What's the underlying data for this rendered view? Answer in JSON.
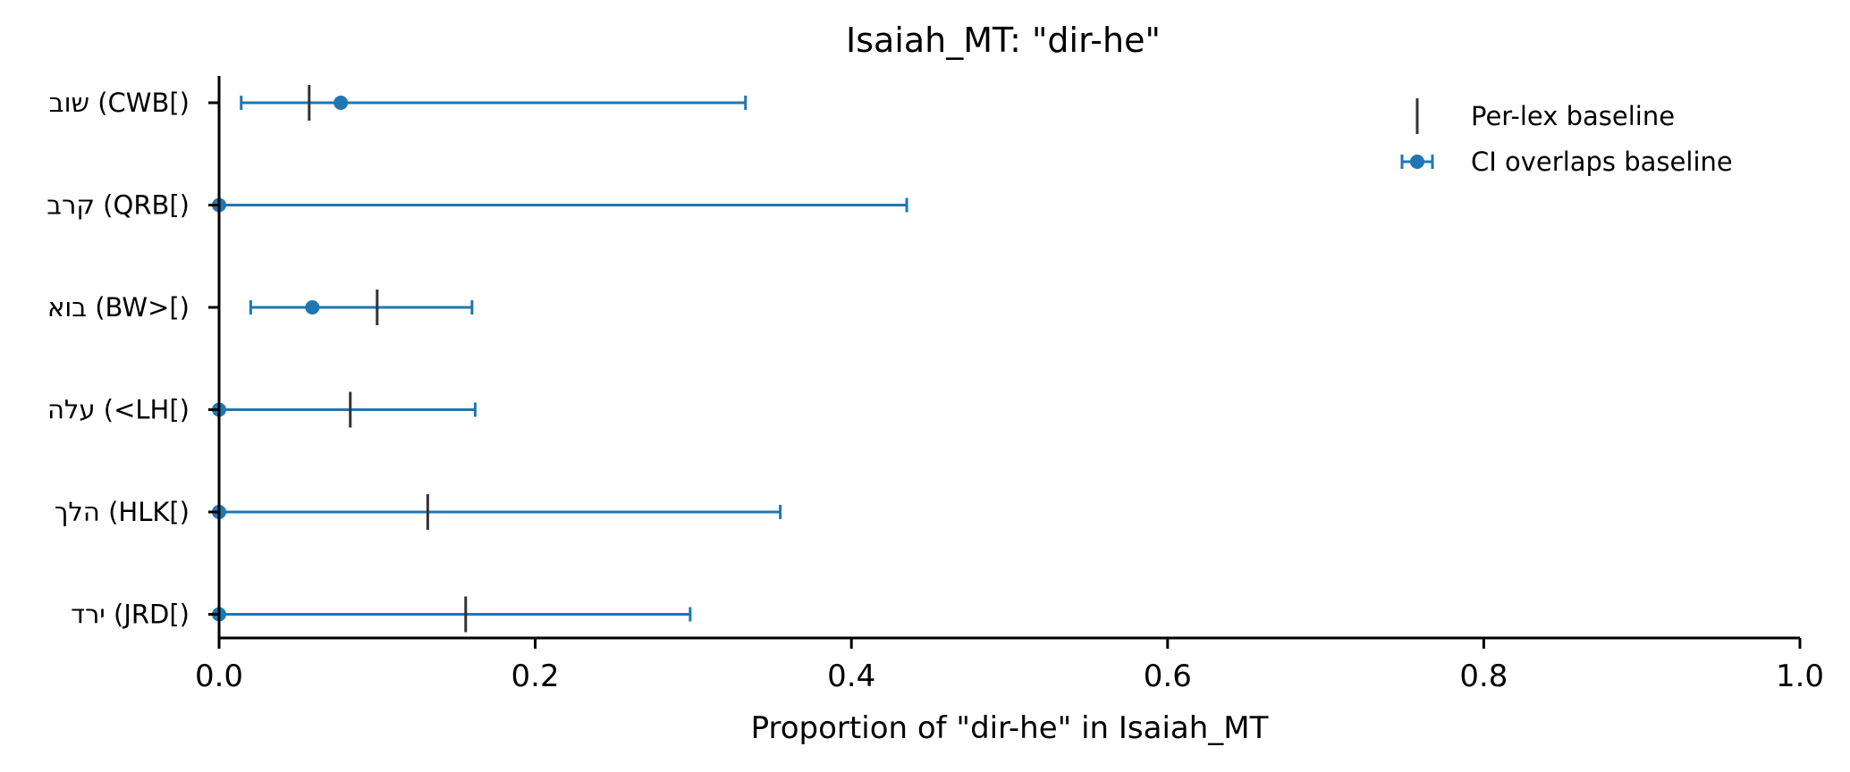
{
  "chart_data": {
    "type": "errorbar-dot",
    "title": "Isaiah_MT: \"dir-he\"",
    "xlabel": "Proportion of \"dir-he\" in Isaiah_MT",
    "ylabel": "",
    "xlim": [
      0.0,
      1.0
    ],
    "xticks": [
      "0.0",
      "0.2",
      "0.4",
      "0.6",
      "0.8",
      "1.0"
    ],
    "grid": false,
    "legend_position": "top-right",
    "legend": [
      {
        "label": "Per-lex baseline",
        "marker": "vertical-line",
        "color": "#333333"
      },
      {
        "label": "CI overlaps baseline",
        "marker": "dot-with-errorbar",
        "color": "#1f77b4"
      }
    ],
    "categories": [
      "שוב (CWB[)",
      "קרב (QRB[)",
      "בוא (BW>[)",
      "עלה (<LH[)",
      "הלך (HLK[)",
      "ירד (JRD[)"
    ],
    "series": [
      {
        "name": "CI overlaps baseline",
        "color": "#1f77b4",
        "points": [
          {
            "value": 0.077,
            "ci_low": 0.014,
            "ci_high": 0.333
          },
          {
            "value": 0.0,
            "ci_low": 0.0,
            "ci_high": 0.435
          },
          {
            "value": 0.059,
            "ci_low": 0.02,
            "ci_high": 0.16
          },
          {
            "value": 0.0,
            "ci_low": 0.0,
            "ci_high": 0.162
          },
          {
            "value": 0.0,
            "ci_low": 0.0,
            "ci_high": 0.355
          },
          {
            "value": 0.0,
            "ci_low": 0.0,
            "ci_high": 0.298
          }
        ]
      },
      {
        "name": "Per-lex baseline",
        "color": "#333333",
        "values": [
          0.057,
          null,
          0.1,
          0.083,
          0.132,
          0.156
        ]
      }
    ]
  }
}
